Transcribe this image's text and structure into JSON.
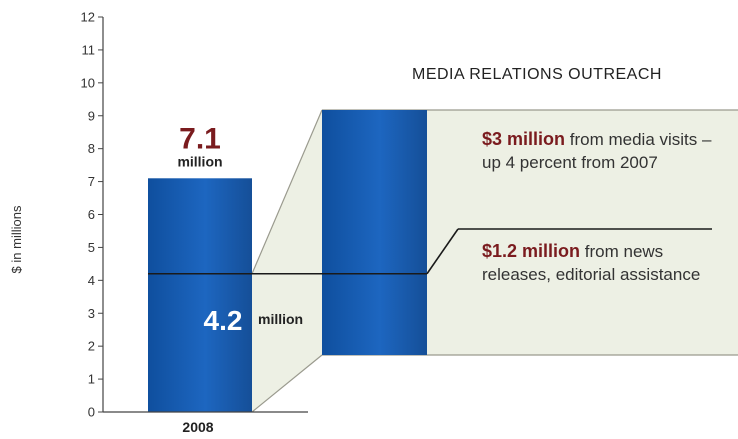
{
  "chart_data": {
    "type": "bar",
    "title": "MEDIA RELATIONS OUTREACH",
    "ylabel": "$ in millions",
    "xlabel": "",
    "ylim": [
      0,
      12
    ],
    "yticks": [
      "0",
      "1",
      "2",
      "3",
      "4",
      "5",
      "6",
      "7",
      "8",
      "9",
      "10",
      "11",
      "12"
    ],
    "categories": [
      "2008"
    ],
    "total": {
      "value": 7.1,
      "label": "7.1",
      "unit": "million"
    },
    "segment": {
      "value": 4.2,
      "label": "4.2",
      "unit": "million"
    },
    "breakdown": [
      {
        "highlight": "$3 million",
        "text": " from media visits – up 4 percent from 2007"
      },
      {
        "highlight": "$1.2 million",
        "text": " from news releases, editorial assistance"
      }
    ],
    "colors": {
      "bar": "#1a5fb4",
      "panel": "#edf0e4",
      "accent": "#7a1b1e"
    }
  }
}
